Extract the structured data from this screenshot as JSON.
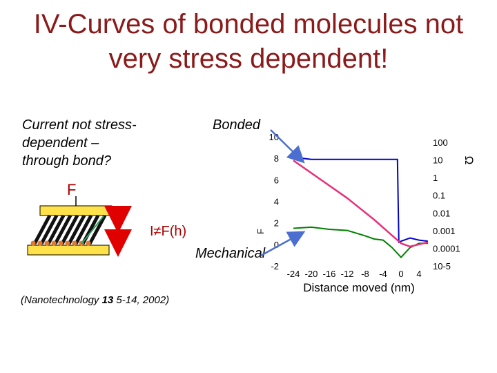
{
  "slide": {
    "title_line1": "IV-Curves of bonded molecules not",
    "title_line2": "very stress dependent!",
    "note_line1": "Current not stress-",
    "note_line2": "dependent –",
    "note_line3": "through bond?",
    "bonded_label": "Bonded",
    "mechanical_label": "Mechanical",
    "force_label": "F",
    "ifh_label": "I≠F(h)",
    "citation_prefix": "(Nanotechnology ",
    "citation_volume": "13",
    "citation_suffix": " 5-14, 2002)"
  },
  "colors": {
    "title": "#8b1a1a",
    "arrow": "#4a6fd0",
    "bonded_trace": "#0000cc",
    "mechanical_trace": "#008000",
    "force_trace": "#e8307a",
    "plate": "#ffe24a",
    "double_arrow": "#e00000"
  },
  "chart_data": {
    "type": "line",
    "xlabel": "Distance moved (nm)",
    "ylabel_left": "F",
    "ylabel_right": "Ω",
    "x_ticks": [
      "-24",
      "-20",
      "-16",
      "-12",
      "-8",
      "-4",
      "0",
      "4"
    ],
    "left_ticks": [
      "10",
      "8",
      "6",
      "4",
      "2",
      "0",
      "-2"
    ],
    "right_ticks": [
      "100",
      "10",
      "1",
      "0.1",
      "0.01",
      "0.001",
      "0.0001",
      "10-5"
    ],
    "xlim": [
      -26,
      6
    ],
    "ylim_left": [
      -2,
      10
    ],
    "series": [
      {
        "color_key": "bonded_trace",
        "x": [
          -24,
          -20,
          -16,
          -12,
          -8,
          -4,
          -2,
          -0.8,
          -0.5,
          0,
          2,
          4,
          6
        ],
        "y": [
          8.1,
          7.9,
          7.9,
          7.9,
          7.9,
          7.9,
          7.9,
          7.9,
          0.2,
          0.3,
          0.6,
          0.4,
          0.3
        ]
      },
      {
        "color_key": "mechanical_trace",
        "x": [
          -24,
          -20,
          -16,
          -12,
          -8,
          -6,
          -4,
          -2,
          0,
          2,
          4,
          6
        ],
        "y": [
          1.5,
          1.6,
          1.4,
          1.3,
          0.8,
          0.5,
          0.4,
          -0.3,
          -1.2,
          -0.3,
          0.1,
          0.1
        ]
      },
      {
        "color_key": "force_trace",
        "x": [
          -24,
          -12,
          -6,
          0,
          2,
          4,
          6
        ],
        "y": [
          7.8,
          4.3,
          2.3,
          0.1,
          -0.2,
          0.0,
          0.2
        ]
      }
    ]
  }
}
